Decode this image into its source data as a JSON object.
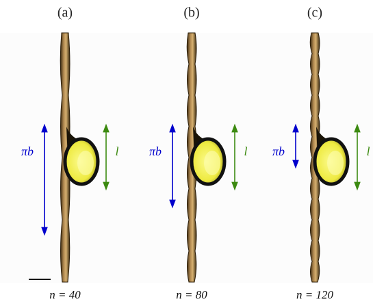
{
  "panels": [
    {
      "label": "(a)",
      "pi_b": "πb",
      "l": "l",
      "caption": "n = 40"
    },
    {
      "label": "(b)",
      "pi_b": "πb",
      "l": "l",
      "caption": "n = 80"
    },
    {
      "label": "(c)",
      "pi_b": "πb",
      "l": "l",
      "caption": "n = 120"
    }
  ]
}
